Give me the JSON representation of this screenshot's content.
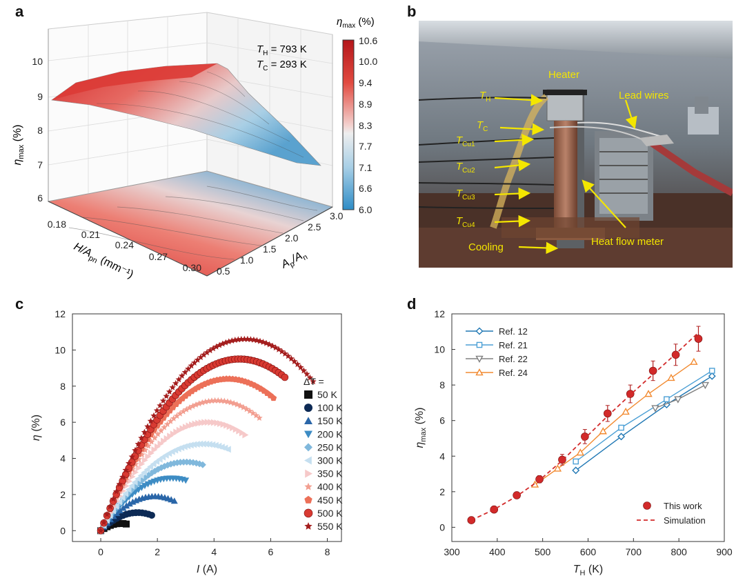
{
  "panels": {
    "a": {
      "label": "a",
      "colorbar_title": "η",
      "colorbar_title_sub": "max",
      "colorbar_title_unit": " (%)",
      "colorbar_ticks": [
        "10.6",
        "10.0",
        "9.4",
        "8.9",
        "8.3",
        "7.7",
        "7.1",
        "6.6",
        "6.0"
      ],
      "annotation_th_pre": "T",
      "annotation_th_sub": "H",
      "annotation_th_val": " = 793 K",
      "annotation_tc_pre": "T",
      "annotation_tc_sub": "C",
      "annotation_tc_val": " = 293 K",
      "z_ticks": [
        "10",
        "9",
        "8",
        "7",
        "6"
      ],
      "z_label": "η",
      "z_label_sub": "max",
      "z_label_unit": " (%)",
      "h_ticks": [
        "0.18",
        "0.21",
        "0.24",
        "0.27",
        "0.30"
      ],
      "h_label": "H/A",
      "h_label_sub": "pn",
      "h_label_unit": " (mm⁻¹)",
      "ap_ticks": [
        "3.0",
        "2.5",
        "2.0",
        "1.5",
        "1.0",
        "0.5"
      ],
      "ap_label": "A",
      "ap_label_sub1": "p",
      "ap_label_mid": "/A",
      "ap_label_sub2": "n"
    },
    "b": {
      "label": "b",
      "labels": {
        "heater": "Heater",
        "lead_wires": "Lead wires",
        "heat_flow_meter": "Heat flow meter",
        "cooling": "Cooling",
        "th": "T",
        "th_sub": "H",
        "tc": "T",
        "tc_sub": "C",
        "tcu1": "T",
        "tcu1_sub": "Cu1",
        "tcu2": "T",
        "tcu2_sub": "Cu2",
        "tcu3": "T",
        "tcu3_sub": "Cu3",
        "tcu4": "T",
        "tcu4_sub": "Cu4"
      }
    },
    "c": {
      "label": "c"
    },
    "d": {
      "label": "d"
    }
  },
  "chart_data": [
    {
      "panel": "c",
      "type": "scatter",
      "xlabel": "I (A)",
      "ylabel": "η (%)",
      "xlim": [
        -1,
        8.5
      ],
      "ylim": [
        -0.6,
        12
      ],
      "xticks": [
        0,
        2,
        4,
        6,
        8
      ],
      "yticks": [
        0,
        2,
        4,
        6,
        8,
        10,
        12
      ],
      "legend_title": "ΔT =",
      "legend_placement": "right",
      "series": [
        {
          "name": "50 K",
          "marker": "square",
          "color": "#111111",
          "imax": 0.9,
          "peak_i": 0.7,
          "peak": 0.4
        },
        {
          "name": "100 K",
          "marker": "circle",
          "color": "#0d2a55",
          "imax": 1.8,
          "peak_i": 1.3,
          "peak": 1.0
        },
        {
          "name": "150 K",
          "marker": "triangle-up",
          "color": "#2a66a8",
          "imax": 2.6,
          "peak_i": 1.9,
          "peak": 1.9
        },
        {
          "name": "200 K",
          "marker": "triangle-down",
          "color": "#3d8cc4",
          "imax": 3.0,
          "peak_i": 2.5,
          "peak": 2.9
        },
        {
          "name": "250 K",
          "marker": "diamond",
          "color": "#80b8dc",
          "imax": 3.6,
          "peak_i": 3.0,
          "peak": 3.8
        },
        {
          "name": "300 K",
          "marker": "triangle-left",
          "color": "#c5dff0",
          "imax": 4.5,
          "peak_i": 3.6,
          "peak": 4.8
        },
        {
          "name": "350 K",
          "marker": "triangle-right",
          "color": "#f6c9c9",
          "imax": 5.1,
          "peak_i": 3.8,
          "peak": 6.0
        },
        {
          "name": "400 K",
          "marker": "star",
          "color": "#f29e90",
          "imax": 5.6,
          "peak_i": 4.1,
          "peak": 7.2
        },
        {
          "name": "450 K",
          "marker": "pentagon",
          "color": "#ec7058",
          "imax": 6.1,
          "peak_i": 4.5,
          "peak": 8.4
        },
        {
          "name": "500 K",
          "marker": "sphere",
          "color": "#d83a32",
          "imax": 6.5,
          "peak_i": 4.9,
          "peak": 9.5
        },
        {
          "name": "550 K",
          "marker": "star",
          "color": "#a41d1d",
          "imax": 7.5,
          "peak_i": 5.1,
          "peak": 10.6
        }
      ]
    },
    {
      "panel": "d",
      "type": "line",
      "xlabel": "T",
      "xlabel_sub": "H",
      "xlabel_unit": " (K)",
      "ylabel": "η",
      "ylabel_sub": "max",
      "ylabel_unit": " (%)",
      "xlim": [
        300,
        900
      ],
      "ylim": [
        -0.8,
        12
      ],
      "xticks": [
        300,
        400,
        500,
        600,
        700,
        800,
        900
      ],
      "yticks": [
        0,
        2,
        4,
        6,
        8,
        10,
        12
      ],
      "legend_top": [
        {
          "name": "Ref. 12",
          "marker": "diamond",
          "color": "#1f77b4"
        },
        {
          "name": "Ref. 21",
          "marker": "square",
          "color": "#4b9fd5"
        },
        {
          "name": "Ref. 22",
          "marker": "triangle-down",
          "color": "#808080"
        },
        {
          "name": "Ref. 24",
          "marker": "triangle-up",
          "color": "#f28a30"
        }
      ],
      "legend_bottom": [
        {
          "name": "This work",
          "marker": "sphere",
          "color": "#d22a2a"
        },
        {
          "name": "Simulation",
          "marker": "dash",
          "color": "#d22a2a"
        }
      ],
      "series": [
        {
          "name": "Ref. 12",
          "x": [
            573,
            673,
            773,
            873
          ],
          "y": [
            3.2,
            5.1,
            6.9,
            8.5
          ]
        },
        {
          "name": "Ref. 21",
          "x": [
            573,
            673,
            773,
            873
          ],
          "y": [
            3.7,
            5.6,
            7.2,
            8.8
          ]
        },
        {
          "name": "Ref. 22",
          "x": [
            748,
            798,
            858
          ],
          "y": [
            6.7,
            7.2,
            8.0
          ]
        },
        {
          "name": "Ref. 24",
          "x": [
            483,
            533,
            583,
            633,
            683,
            733,
            783,
            833
          ],
          "y": [
            2.4,
            3.3,
            4.2,
            5.4,
            6.5,
            7.5,
            8.4,
            9.3
          ]
        },
        {
          "name": "This work",
          "x": [
            343,
            393,
            443,
            493,
            543,
            593,
            643,
            693,
            743,
            793,
            843
          ],
          "y": [
            0.4,
            1.0,
            1.8,
            2.7,
            3.8,
            5.1,
            6.4,
            7.5,
            8.8,
            9.7,
            10.6
          ],
          "err": [
            0,
            0,
            0,
            0.2,
            0.3,
            0.4,
            0.45,
            0.5,
            0.55,
            0.6,
            0.7
          ]
        },
        {
          "name": "Simulation",
          "x": [
            343,
            393,
            443,
            493,
            543,
            593,
            643,
            693,
            743,
            793,
            843
          ],
          "y": [
            0.4,
            1.0,
            1.75,
            2.65,
            3.75,
            5.0,
            6.25,
            7.45,
            8.6,
            9.75,
            10.95
          ]
        }
      ]
    }
  ]
}
